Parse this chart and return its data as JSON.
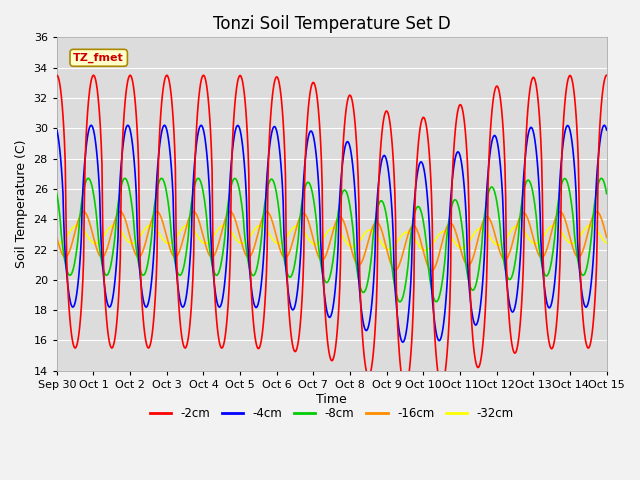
{
  "title": "Tonzi Soil Temperature Set D",
  "xlabel": "Time",
  "ylabel": "Soil Temperature (C)",
  "xlim": [
    0,
    15
  ],
  "ylim": [
    14,
    36
  ],
  "yticks": [
    14,
    16,
    18,
    20,
    22,
    24,
    26,
    28,
    30,
    32,
    34,
    36
  ],
  "xtick_labels": [
    "Sep 30",
    "Oct 1",
    "Oct 2",
    "Oct 3",
    "Oct 4",
    "Oct 5",
    "Oct 6",
    "Oct 7",
    "Oct 8",
    "Oct 9",
    "Oct 10",
    "Oct 11",
    "Oct 12",
    "Oct 13",
    "Oct 14",
    "Oct 15"
  ],
  "xtick_positions": [
    0,
    1,
    2,
    3,
    4,
    5,
    6,
    7,
    8,
    9,
    10,
    11,
    12,
    13,
    14,
    15
  ],
  "series_colors": [
    "#FF0000",
    "#0000FF",
    "#00CC00",
    "#FF8C00",
    "#FFFF00"
  ],
  "series_labels": [
    "-2cm",
    "-4cm",
    "-8cm",
    "-16cm",
    "-32cm"
  ],
  "annotation_text": "TZ_fmet",
  "bg_color": "#DCDCDC",
  "grid_color": "#FFFFFF",
  "title_fontsize": 12,
  "label_fontsize": 9,
  "tick_fontsize": 8
}
